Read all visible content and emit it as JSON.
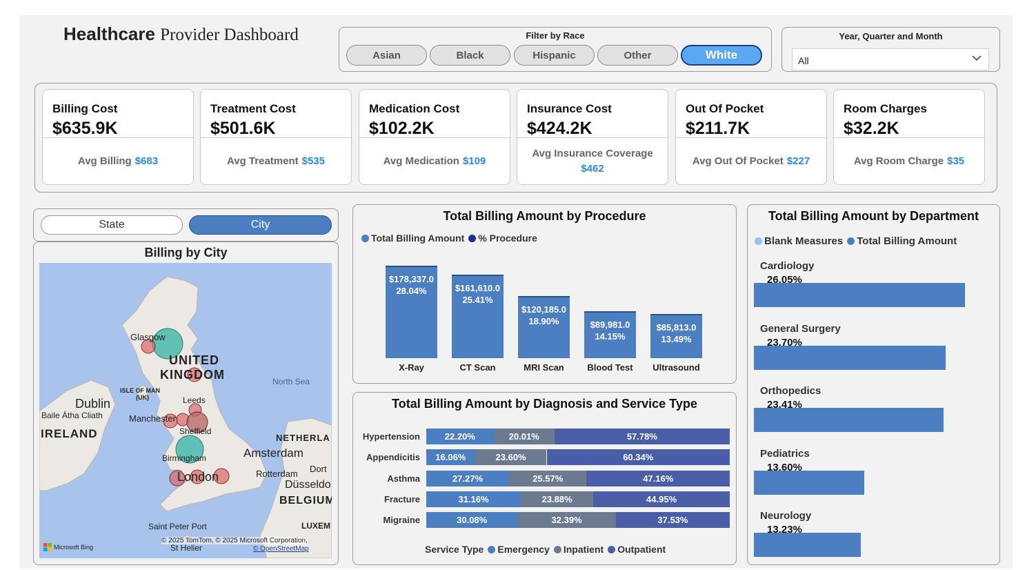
{
  "header": {
    "title_bold": "Healthcare",
    "title_rest": "Provider Dashboard"
  },
  "race_filter": {
    "title": "Filter by Race",
    "options": [
      "Asian",
      "Black",
      "Hispanic",
      "Other",
      "White"
    ],
    "selected": "White"
  },
  "period_filter": {
    "title": "Year, Quarter and Month",
    "value": "All"
  },
  "kpis": [
    {
      "label": "Billing Cost",
      "value": "$635.9K",
      "sub_label": "Avg Billing",
      "sub_value": "$683"
    },
    {
      "label": "Treatment Cost",
      "value": "$501.6K",
      "sub_label": "Avg Treatment",
      "sub_value": "$535"
    },
    {
      "label": "Medication Cost",
      "value": "$102.2K",
      "sub_label": "Avg Medication",
      "sub_value": "$109"
    },
    {
      "label": "Insurance Cost",
      "value": "$424.2K",
      "sub_label": "Avg Insurance Coverage",
      "sub_value": "$462"
    },
    {
      "label": "Out Of Pocket",
      "value": "$211.7K",
      "sub_label": "Avg Out Of Pocket",
      "sub_value": "$227"
    },
    {
      "label": "Room Charges",
      "value": "$32.2K",
      "sub_label": "Avg Room Charge",
      "sub_value": "$35"
    }
  ],
  "geo_toggle": {
    "options": [
      "State",
      "City"
    ],
    "selected": "City"
  },
  "map": {
    "title": "Billing by City",
    "labels": {
      "glasgow": "Glasgow",
      "uk1": "UNITED",
      "uk2": "KINGDOM",
      "north_sea": "North Sea",
      "isle1": "ISLE OF MAN",
      "isle2": "(UK)",
      "leeds": "Leeds",
      "dublin": "Dublin",
      "baile": "Baile Átha Cliath",
      "manchester": "Manchester",
      "ireland": "IRELAND",
      "sheffield": "Sheffield",
      "netherlands": "NETHERLA",
      "amsterdam": "Amsterdam",
      "birmingham": "Birmingham",
      "rotterdam": "Rotterdam",
      "dort": "Dort",
      "london": "London",
      "dusseldorf": "Düsseldo",
      "belgium": "BELGIUM",
      "luxem": "LUXEM",
      "saint_peter": "Saint Peter Port",
      "st_helier": "St Helier"
    },
    "attribution": "© 2025 TomTom, © 2025 Microsoft Corporation,",
    "osm": "© OpenStreetMap",
    "bing": "Microsoft Bing",
    "colors": {
      "water": "#a9c4ec",
      "land": "#ece9e4",
      "teal": "#3fb5a8",
      "red": "#d96a6a"
    }
  },
  "procedure_chart": {
    "title": "Total Billing Amount by Procedure",
    "legend": [
      {
        "name": "Total Billing Amount",
        "color": "#4b7fc1"
      },
      {
        "name": "% Procedure",
        "color": "#1a2f9a"
      }
    ]
  },
  "diagnosis_chart": {
    "title": "Total Billing Amount by Diagnosis and Service Type",
    "legend_title": "Service Type",
    "legend": [
      {
        "name": "Emergency",
        "color": "#4b7fc1"
      },
      {
        "name": "Inpatient",
        "color": "#6b7a8f"
      },
      {
        "name": "Outpatient",
        "color": "#4a5ea8"
      }
    ]
  },
  "department_chart": {
    "title": "Total Billing Amount by Department",
    "legend": [
      {
        "name": "Blank Measures",
        "color": "#8fc3f5"
      },
      {
        "name": "Total Billing Amount",
        "color": "#4b7fc1"
      }
    ]
  },
  "chart_data": [
    {
      "type": "bar",
      "title": "Total Billing Amount by Procedure",
      "categories": [
        "X-Ray",
        "CT Scan",
        "MRI Scan",
        "Blood Test",
        "Ultrasound"
      ],
      "series": [
        {
          "name": "Total Billing Amount",
          "values": [
            178337.0,
            161610.0,
            120185.0,
            89981.0,
            85813.0
          ]
        },
        {
          "name": "% Procedure",
          "values": [
            28.04,
            25.41,
            18.9,
            14.15,
            13.49
          ]
        }
      ],
      "value_labels": [
        "$178,337.0",
        "$161,610.0",
        "$120,185.0",
        "$89,981.0",
        "$85,813.0"
      ],
      "pct_labels": [
        "28.04%",
        "25.41%",
        "18.90%",
        "14.15%",
        "13.49%"
      ]
    },
    {
      "type": "bar",
      "title": "Total Billing Amount by Diagnosis and Service Type",
      "categories": [
        "Hypertension",
        "Appendicitis",
        "Asthma",
        "Fracture",
        "Migraine"
      ],
      "series": [
        {
          "name": "Emergency",
          "values": [
            22.2,
            16.06,
            27.27,
            31.16,
            30.08
          ]
        },
        {
          "name": "Inpatient",
          "values": [
            20.01,
            23.6,
            25.57,
            23.88,
            32.39
          ]
        },
        {
          "name": "Outpatient",
          "values": [
            57.78,
            60.34,
            47.16,
            44.95,
            37.53
          ]
        }
      ],
      "labels": [
        [
          "22.20%",
          "20.01%",
          "57.78%"
        ],
        [
          "16.06%",
          "23.60%",
          "60.34%"
        ],
        [
          "27.27%",
          "25.57%",
          "47.16%"
        ],
        [
          "31.16%",
          "23.88%",
          "44.95%"
        ],
        [
          "30.08%",
          "32.39%",
          "37.53%"
        ]
      ]
    },
    {
      "type": "bar",
      "title": "Total Billing Amount by Department",
      "categories": [
        "Cardiology",
        "General Surgery",
        "Orthopedics",
        "Pediatrics",
        "Neurology"
      ],
      "series": [
        {
          "name": "Total Billing Amount",
          "values": [
            26.05,
            23.7,
            23.41,
            13.6,
            13.23
          ]
        }
      ],
      "labels": [
        "26.05%",
        "23.70%",
        "23.41%",
        "13.60%",
        "13.23%"
      ]
    }
  ]
}
